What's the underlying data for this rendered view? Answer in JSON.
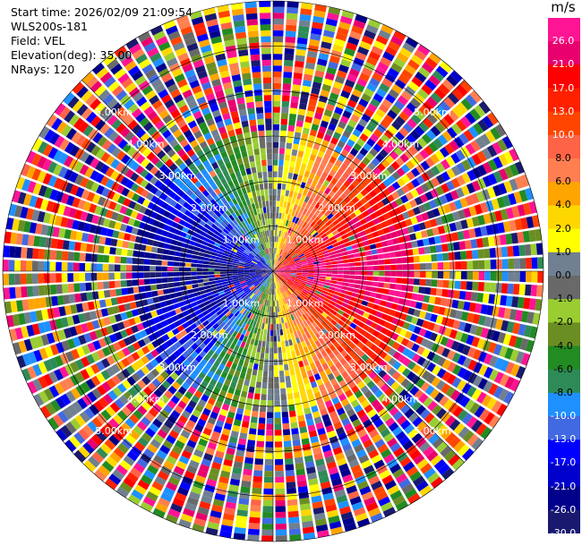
{
  "header": {
    "start_time": "Start time: 2026/02/09 21:09:54",
    "instrument": "WLS200s-181",
    "field": "Field: VEL",
    "elevation": "Elevation(deg): 35.00",
    "nrays": "NRays: 120"
  },
  "chart_data": {
    "type": "ppi",
    "nrays": 120,
    "elevation_deg": 35.0,
    "max_range_km": 6.0,
    "range_rings_km": [
      1,
      2,
      3,
      4,
      5,
      6
    ],
    "ring_labels": [
      "1.00km",
      "2.00km",
      "3.00km",
      "4.00km",
      "5.00km"
    ],
    "colorbar": {
      "unit": "m/s",
      "labels": [
        "26.0",
        "21.0",
        "17.0",
        "13.0",
        "10.0",
        "8.0",
        "6.0",
        "4.0",
        "2.0",
        "1.0",
        "0.0",
        "-1.0",
        "-2.0",
        "-4.0",
        "-6.0",
        "-8.0",
        "-10.0",
        "-13.0",
        "-17.0",
        "-21.0",
        "-26.0",
        "-30.0"
      ],
      "colors": [
        "#ff1493",
        "#e8006e",
        "#ff0000",
        "#ff2000",
        "#ff4500",
        "#ff6347",
        "#ff7f50",
        "#ffa500",
        "#ffd700",
        "#ffff00",
        "#708090",
        "#696969",
        "#9acd32",
        "#6b8e23",
        "#228b22",
        "#2e8b57",
        "#1e90ff",
        "#4169e1",
        "#0000ff",
        "#0000cd",
        "#00008b",
        "#191970"
      ]
    },
    "pattern": "inner ranges: negative velocities (blue) to the west, positive (pink/red) to the east; outer ranges noisy"
  }
}
